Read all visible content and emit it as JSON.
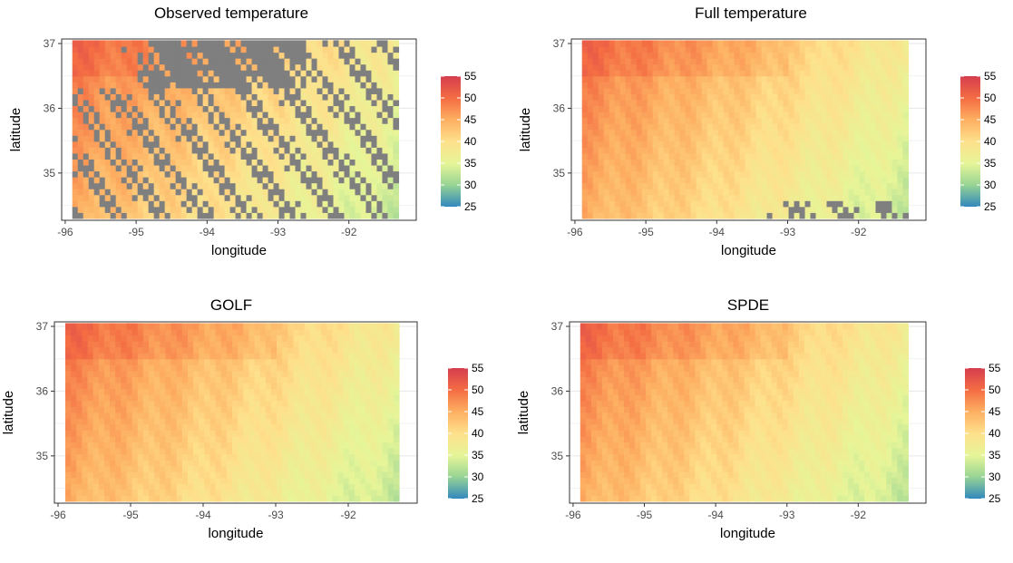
{
  "figure": {
    "type": "heatmap-grid"
  },
  "chart_data": [
    {
      "type": "heatmap",
      "title": "Observed temperature",
      "xlabel": "longitude",
      "ylabel": "latitude",
      "x_ticks": [
        -96,
        -95,
        -94,
        -93,
        -92
      ],
      "y_ticks": [
        35,
        36,
        37
      ],
      "xlim": [
        -96.05,
        -91.05
      ],
      "ylim": [
        34.27,
        37.07
      ],
      "data_extent": {
        "x": [
          -95.9,
          -91.3
        ],
        "y": [
          34.3,
          37.05
        ]
      },
      "colorbar": {
        "ticks": [
          25,
          30,
          35,
          40,
          45,
          50,
          55
        ],
        "range": [
          25,
          55
        ],
        "palette": "Spectral"
      },
      "missing_color": "#7f7f7f",
      "missing_fraction": 0.38,
      "grid": true,
      "legend_position": "right"
    },
    {
      "type": "heatmap",
      "title": "Full temperature",
      "xlabel": "longitude",
      "ylabel": "latitude",
      "x_ticks": [
        -96,
        -95,
        -94,
        -93,
        -92
      ],
      "y_ticks": [
        35,
        36,
        37
      ],
      "xlim": [
        -96.05,
        -91.05
      ],
      "ylim": [
        34.27,
        37.07
      ],
      "data_extent": {
        "x": [
          -95.9,
          -91.3
        ],
        "y": [
          34.3,
          37.05
        ]
      },
      "colorbar": {
        "ticks": [
          25,
          30,
          35,
          40,
          45,
          50,
          55
        ],
        "range": [
          25,
          55
        ],
        "palette": "Spectral"
      },
      "missing_color": "#7f7f7f",
      "missing_fraction": 0.02,
      "grid": true,
      "legend_position": "right"
    },
    {
      "type": "heatmap",
      "title": "GOLF",
      "xlabel": "longitude",
      "ylabel": "latitude",
      "x_ticks": [
        -96,
        -95,
        -94,
        -93,
        -92
      ],
      "y_ticks": [
        35,
        36,
        37
      ],
      "xlim": [
        -96.05,
        -91.05
      ],
      "ylim": [
        34.27,
        37.07
      ],
      "data_extent": {
        "x": [
          -95.9,
          -91.3
        ],
        "y": [
          34.3,
          37.05
        ]
      },
      "colorbar": {
        "ticks": [
          25,
          30,
          35,
          40,
          45,
          50,
          55
        ],
        "range": [
          25,
          55
        ],
        "palette": "Spectral"
      },
      "missing_color": "#7f7f7f",
      "missing_fraction": 0,
      "grid": true,
      "legend_position": "right"
    },
    {
      "type": "heatmap",
      "title": "SPDE",
      "xlabel": "longitude",
      "ylabel": "latitude",
      "x_ticks": [
        -96,
        -95,
        -94,
        -93,
        -92
      ],
      "y_ticks": [
        35,
        36,
        37
      ],
      "xlim": [
        -96.05,
        -91.05
      ],
      "ylim": [
        34.27,
        37.07
      ],
      "data_extent": {
        "x": [
          -95.9,
          -91.3
        ],
        "y": [
          34.3,
          37.05
        ]
      },
      "colorbar": {
        "ticks": [
          25,
          30,
          35,
          40,
          45,
          50,
          55
        ],
        "range": [
          25,
          55
        ],
        "palette": "Spectral"
      },
      "missing_color": "#7f7f7f",
      "missing_fraction": 0,
      "grid": true,
      "legend_position": "right"
    }
  ]
}
